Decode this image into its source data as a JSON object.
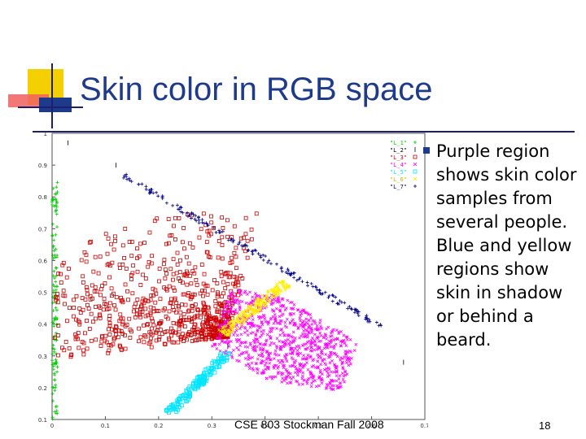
{
  "slide": {
    "title": "Skin color in RGB space",
    "body": "Purple region shows skin color samples from several people. Blue and yellow regions show skin in shadow or behind a beard.",
    "footer": "CSE 803 Stockman Fall 2008",
    "page_number": "18"
  },
  "colors": {
    "title": "#1e3a8a",
    "deco_yellow": "#f5d000",
    "deco_red": "#e83030",
    "deco_blue": "#1e3a8a"
  },
  "chart_data": {
    "type": "scatter",
    "title": "",
    "xlabel": "",
    "ylabel": "",
    "xlim": [
      0,
      0.7
    ],
    "ylim": [
      0.1,
      1.0
    ],
    "x_ticks": [
      "0",
      "0.1",
      "0.2",
      "0.3",
      "0.4",
      "0.5",
      "0.6",
      "0.7"
    ],
    "y_ticks": [
      "0.1",
      "0.2",
      "0.3",
      "0.4",
      "0.5",
      "0.6",
      "0.7",
      "0.8",
      "0.9",
      "1"
    ],
    "legend_position": "top-right",
    "series": [
      {
        "name": "\"L_1\"",
        "color": "#00cc00",
        "marker": "+"
      },
      {
        "name": "\"L_2\"",
        "color": "#000000",
        "marker": "|"
      },
      {
        "name": "\"L_3\"",
        "color": "#cc0000",
        "marker": "square"
      },
      {
        "name": "\"L_4\"",
        "color": "#ff00ff",
        "marker": "x"
      },
      {
        "name": "\"L_5\"",
        "color": "#00e5ff",
        "marker": "square"
      },
      {
        "name": "\"L_6\"",
        "color": "#ffee00",
        "marker": "x"
      },
      {
        "name": "\"L_7\"",
        "color": "#000088",
        "marker": "+"
      }
    ],
    "regions": {
      "green_edge": {
        "x": [
          0.0,
          0.01
        ],
        "y": [
          0.1,
          0.85
        ]
      },
      "red_fan_apex": [
        0.33,
        0.36
      ],
      "magenta_center": [
        0.44,
        0.35
      ],
      "yellow_band": [
        [
          0.32,
          0.37
        ],
        [
          0.44,
          0.53
        ]
      ],
      "cyan_band": [
        [
          0.22,
          0.12
        ],
        [
          0.33,
          0.31
        ]
      ],
      "blue_line": [
        [
          0.12,
          0.88
        ],
        [
          0.62,
          0.39
        ]
      ]
    }
  }
}
